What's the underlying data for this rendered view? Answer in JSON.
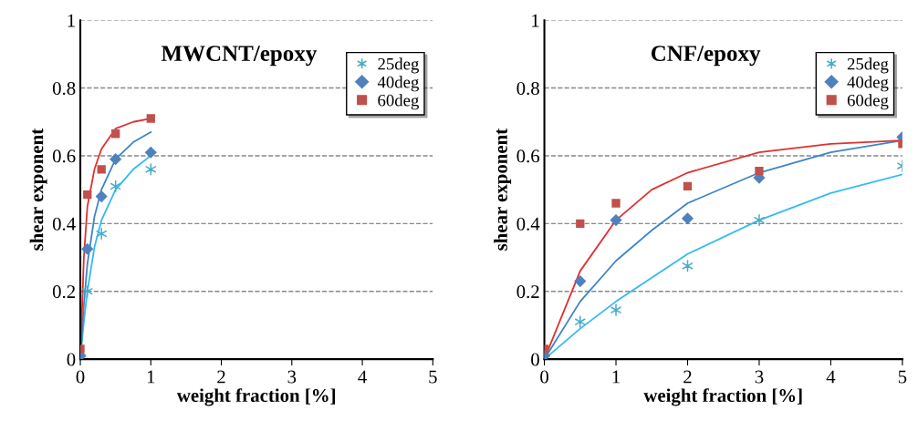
{
  "chart_data": [
    {
      "type": "scatter",
      "title": "MWCNT/epoxy",
      "xlabel": "weight fraction [%]",
      "ylabel": "shear exponent",
      "xlim": [
        0,
        5
      ],
      "ylim": [
        0,
        1
      ],
      "xticks": [
        0,
        1,
        2,
        3,
        4,
        5
      ],
      "yticks": [
        0,
        0.2,
        0.4,
        0.6,
        0.8,
        1
      ],
      "grid": "y",
      "legend": "top right",
      "series": [
        {
          "name": "25deg",
          "color": "#4bacc6",
          "marker": "cross",
          "x": [
            0,
            0.1,
            0.3,
            0.5,
            1
          ],
          "values": [
            0,
            0.2,
            0.37,
            0.51,
            0.56
          ]
        },
        {
          "name": "40deg",
          "color": "#4f81bd",
          "marker": "diamond",
          "x": [
            0,
            0.1,
            0.3,
            0.5,
            1
          ],
          "values": [
            0.01,
            0.325,
            0.48,
            0.59,
            0.61
          ]
        },
        {
          "name": "60deg",
          "color": "#c0504d",
          "marker": "square",
          "x": [
            0,
            0.1,
            0.3,
            0.5,
            1
          ],
          "values": [
            0.03,
            0.485,
            0.56,
            0.665,
            0.71
          ]
        },
        {
          "type": "line",
          "color": "#33bbee",
          "x": [
            0,
            0.05,
            0.1,
            0.2,
            0.3,
            0.5,
            0.75,
            1
          ],
          "values": [
            0,
            0.11,
            0.2,
            0.33,
            0.41,
            0.5,
            0.56,
            0.6
          ]
        },
        {
          "type": "line",
          "color": "#3d85c6",
          "x": [
            0,
            0.05,
            0.1,
            0.2,
            0.3,
            0.5,
            0.75,
            1
          ],
          "values": [
            0,
            0.16,
            0.28,
            0.42,
            0.5,
            0.59,
            0.64,
            0.67
          ]
        },
        {
          "type": "line",
          "color": "#e03030",
          "x": [
            0,
            0.05,
            0.1,
            0.2,
            0.3,
            0.5,
            0.75,
            1
          ],
          "values": [
            0,
            0.3,
            0.45,
            0.56,
            0.62,
            0.68,
            0.7,
            0.71
          ]
        }
      ]
    },
    {
      "type": "scatter",
      "title": "CNF/epoxy",
      "xlabel": "weight fraction [%]",
      "ylabel": "shear exponent",
      "xlim": [
        0,
        5
      ],
      "ylim": [
        0,
        1
      ],
      "xticks": [
        0,
        1,
        2,
        3,
        4,
        5
      ],
      "yticks": [
        0,
        0.2,
        0.4,
        0.6,
        0.8,
        1
      ],
      "grid": "y",
      "legend": "top right",
      "series": [
        {
          "name": "25deg",
          "color": "#4bacc6",
          "marker": "cross",
          "x": [
            0,
            0.5,
            1,
            2,
            3,
            5
          ],
          "values": [
            0,
            0.11,
            0.145,
            0.275,
            0.41,
            0.57
          ]
        },
        {
          "name": "40deg",
          "color": "#4f81bd",
          "marker": "diamond",
          "x": [
            0,
            0.5,
            1,
            2,
            3,
            5
          ],
          "values": [
            0.01,
            0.23,
            0.41,
            0.415,
            0.535,
            0.655
          ]
        },
        {
          "name": "60deg",
          "color": "#c0504d",
          "marker": "square",
          "x": [
            0,
            0.5,
            1,
            2,
            3,
            5
          ],
          "values": [
            0.03,
            0.4,
            0.46,
            0.51,
            0.555,
            0.635
          ]
        },
        {
          "type": "line",
          "color": "#33bbee",
          "x": [
            0,
            0.5,
            1,
            1.5,
            2,
            3,
            4,
            5
          ],
          "values": [
            0,
            0.09,
            0.17,
            0.24,
            0.31,
            0.41,
            0.49,
            0.545
          ]
        },
        {
          "type": "line",
          "color": "#3d85c6",
          "x": [
            0,
            0.5,
            1,
            1.5,
            2,
            3,
            4,
            5
          ],
          "values": [
            0,
            0.17,
            0.29,
            0.38,
            0.46,
            0.55,
            0.61,
            0.645
          ]
        },
        {
          "type": "line",
          "color": "#e03030",
          "x": [
            0,
            0.5,
            1,
            1.5,
            2,
            3,
            4,
            5
          ],
          "values": [
            0,
            0.26,
            0.41,
            0.5,
            0.55,
            0.61,
            0.635,
            0.645
          ]
        }
      ]
    }
  ]
}
